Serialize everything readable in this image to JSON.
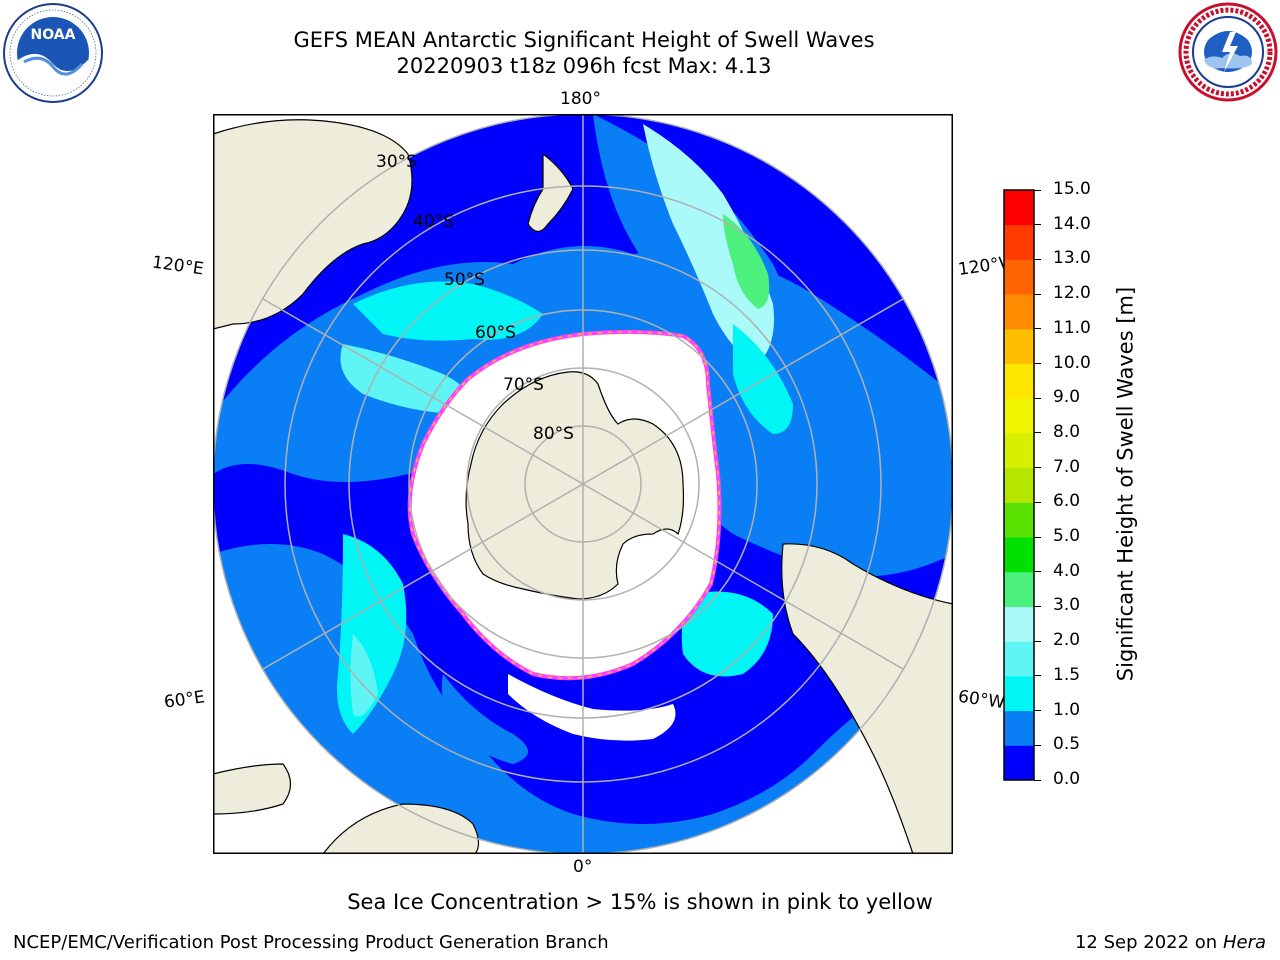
{
  "header": {
    "title_line1": "GEFS MEAN Antarctic Significant Height of Swell Waves",
    "title_line2": "20220903 t18z 096h fcst   Max: 4.13"
  },
  "logos": {
    "noaa_text": "NOAA",
    "noaa_ring_text": "NATIONAL OCEANIC AND ATMOSPHERIC ADMINISTRATION · U.S. DEPARTMENT OF COMMERCE",
    "nws_ring_text": "NATIONAL WEATHER SERVICE"
  },
  "map": {
    "projection": "south-polar-stereographic",
    "longitude_labels": {
      "top": "180°",
      "bottom": "0°",
      "left_upper": "120°E",
      "left_lower": "60°E",
      "right_upper": "120°W",
      "right_lower": "60°W"
    },
    "latitude_labels": [
      "30°S",
      "40°S",
      "50°S",
      "60°S",
      "70°S",
      "80°S"
    ],
    "colors": {
      "land": "#eeecda",
      "sea_ice": "#ffffff",
      "ice_edge": "#ff40ff",
      "ice_edge_secondary": "#ffc020",
      "grid": "#b0b0b0"
    }
  },
  "colorbar": {
    "label": "Significant Height of Swell Waves [m]",
    "ticks": [
      "0.0",
      "0.5",
      "1.0",
      "1.5",
      "2.0",
      "3.0",
      "4.0",
      "5.0",
      "6.0",
      "7.0",
      "8.0",
      "9.0",
      "10.0",
      "11.0",
      "12.0",
      "13.0",
      "14.0",
      "15.0"
    ],
    "colors": [
      "#0000ff",
      "#0a7ff5",
      "#00f5f5",
      "#5ff5f5",
      "#aafafa",
      "#4cf07c",
      "#00e000",
      "#5ae000",
      "#b4e600",
      "#d6f000",
      "#f0f500",
      "#ffe600",
      "#ffbe00",
      "#ff8c00",
      "#ff6400",
      "#ff3c00",
      "#ff0000"
    ]
  },
  "caption": "Sea Ice Concentration > 15% is shown in pink to yellow",
  "footer": {
    "left": "NCEP/EMC/Verification Post Processing Product Generation Branch",
    "date": "12 Sep 2022 on",
    "machine": "Hera"
  }
}
